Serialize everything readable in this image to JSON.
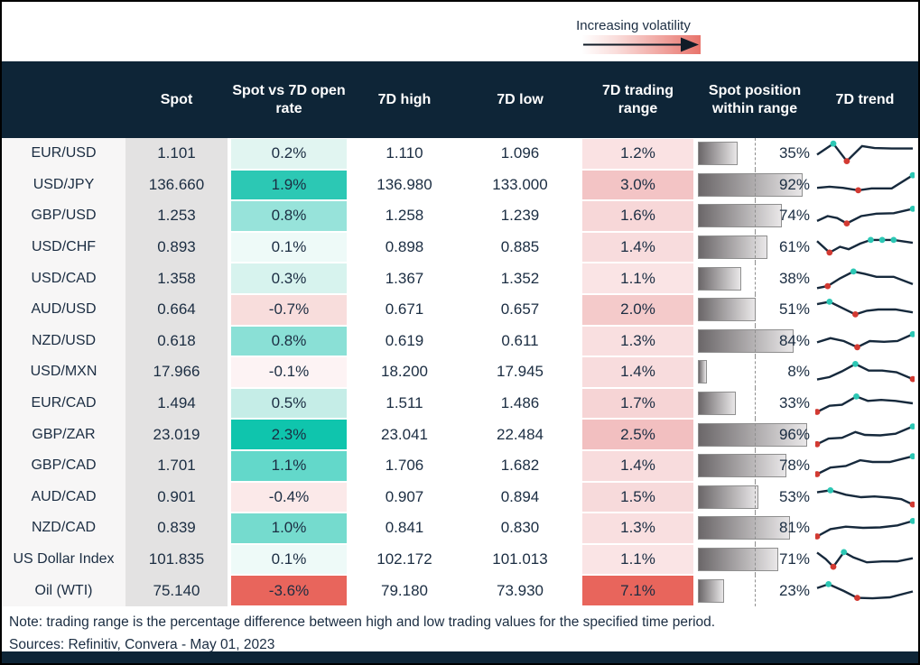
{
  "legend": {
    "label": "Increasing volatility"
  },
  "header": {
    "col_spot": "Spot",
    "col_change": "Spot vs 7D open rate",
    "col_high": "7D high",
    "col_low": "7D low",
    "col_range": "7D trading range",
    "col_position": "Spot position within range",
    "col_trend": "7D trend"
  },
  "footer": {
    "note": "Note: trading range is the percentage difference between high and low trading values for the specified time period.",
    "sources": "Sources: Refinitiv, Convera - May 01, 2023"
  },
  "colors": {
    "header_bg": "#0e2537",
    "text": "#1b2d42",
    "teal_strong": "#2cc8b4",
    "red_strong": "#e8655c",
    "bar_dark": "#6b6769",
    "bar_light": "#e9e7e8",
    "spark_line": "#16293c",
    "marker_up": "#2cc7b4",
    "marker_down": "#d23a32"
  },
  "chart_data": {
    "type": "table",
    "annotation": "Increasing volatility",
    "columns": [
      "",
      "Spot",
      "Spot vs 7D open rate",
      "7D high",
      "7D low",
      "7D trading range",
      "Spot position within range",
      "7D trend"
    ],
    "rows": [
      {
        "pair": "EUR/USD",
        "spot": "1.101",
        "change": "0.2%",
        "change_color": "#e1f5f1",
        "high": "1.110",
        "low": "1.096",
        "range": "1.2%",
        "range_color": "#fae2e3",
        "position_pct": 35,
        "spark": {
          "points": [
            [
              0,
              55
            ],
            [
              17,
              10
            ],
            [
              31,
              82
            ],
            [
              47,
              20
            ],
            [
              60,
              28
            ],
            [
              78,
              30
            ],
            [
              100,
              30
            ]
          ],
          "markers": [
            {
              "idx": 1,
              "dir": "up"
            },
            {
              "idx": 2,
              "dir": "down"
            }
          ]
        }
      },
      {
        "pair": "USD/JPY",
        "spot": "136.660",
        "change": "1.9%",
        "change_color": "#2cc8b4",
        "high": "136.980",
        "low": "133.000",
        "range": "3.0%",
        "range_color": "#f3c4c5",
        "position_pct": 92,
        "spark": {
          "points": [
            [
              0,
              62
            ],
            [
              13,
              57
            ],
            [
              27,
              62
            ],
            [
              43,
              72
            ],
            [
              57,
              64
            ],
            [
              78,
              64
            ],
            [
              100,
              10
            ]
          ],
          "markers": [
            {
              "idx": 3,
              "dir": "down"
            },
            {
              "idx": 6,
              "dir": "up"
            }
          ]
        }
      },
      {
        "pair": "GBP/USD",
        "spot": "1.253",
        "change": "0.8%",
        "change_color": "#97e3da",
        "high": "1.258",
        "low": "1.239",
        "range": "1.6%",
        "range_color": "#f7d7d8",
        "position_pct": 74,
        "spark": {
          "points": [
            [
              0,
              72
            ],
            [
              11,
              52
            ],
            [
              21,
              60
            ],
            [
              31,
              82
            ],
            [
              46,
              52
            ],
            [
              62,
              42
            ],
            [
              80,
              40
            ],
            [
              100,
              22
            ]
          ],
          "markers": [
            {
              "idx": 3,
              "dir": "down"
            },
            {
              "idx": 7,
              "dir": "up"
            }
          ]
        }
      },
      {
        "pair": "USD/CHF",
        "spot": "0.893",
        "change": "0.1%",
        "change_color": "#eefaf8",
        "high": "0.898",
        "low": "0.885",
        "range": "1.4%",
        "range_color": "#f8dcdd",
        "position_pct": 61,
        "spark": {
          "points": [
            [
              0,
              25
            ],
            [
              13,
              72
            ],
            [
              24,
              48
            ],
            [
              33,
              58
            ],
            [
              45,
              35
            ],
            [
              56,
              20
            ],
            [
              68,
              20
            ],
            [
              80,
              20
            ],
            [
              100,
              32
            ]
          ],
          "markers": [
            {
              "idx": 1,
              "dir": "down"
            },
            {
              "idx": 5,
              "dir": "up"
            },
            {
              "idx": 6,
              "dir": "up"
            },
            {
              "idx": 7,
              "dir": "up"
            }
          ]
        }
      },
      {
        "pair": "USD/CAD",
        "spot": "1.358",
        "change": "0.3%",
        "change_color": "#d7f3ee",
        "high": "1.367",
        "low": "1.352",
        "range": "1.1%",
        "range_color": "#fae4e5",
        "position_pct": 38,
        "spark": {
          "points": [
            [
              0,
              88
            ],
            [
              11,
              80
            ],
            [
              24,
              48
            ],
            [
              38,
              20
            ],
            [
              50,
              30
            ],
            [
              62,
              42
            ],
            [
              80,
              42
            ],
            [
              100,
              72
            ]
          ],
          "markers": [
            {
              "idx": 1,
              "dir": "down"
            },
            {
              "idx": 3,
              "dir": "up"
            }
          ]
        }
      },
      {
        "pair": "AUD/USD",
        "spot": "0.664",
        "change": "-0.7%",
        "change_color": "#f8dddc",
        "high": "0.671",
        "low": "0.657",
        "range": "2.0%",
        "range_color": "#f4caca",
        "position_pct": 51,
        "spark": {
          "points": [
            [
              0,
              28
            ],
            [
              13,
              18
            ],
            [
              27,
              45
            ],
            [
              40,
              70
            ],
            [
              52,
              55
            ],
            [
              64,
              50
            ],
            [
              82,
              50
            ],
            [
              100,
              62
            ]
          ],
          "markers": [
            {
              "idx": 1,
              "dir": "up"
            },
            {
              "idx": 3,
              "dir": "down"
            }
          ]
        }
      },
      {
        "pair": "NZD/USD",
        "spot": "0.618",
        "change": "0.8%",
        "change_color": "#8ae0d6",
        "high": "0.619",
        "low": "0.611",
        "range": "1.3%",
        "range_color": "#f9dfe0",
        "position_pct": 84,
        "spark": {
          "points": [
            [
              0,
              55
            ],
            [
              14,
              38
            ],
            [
              28,
              50
            ],
            [
              42,
              75
            ],
            [
              55,
              50
            ],
            [
              70,
              53
            ],
            [
              84,
              50
            ],
            [
              100,
              22
            ]
          ],
          "markers": [
            {
              "idx": 3,
              "dir": "down"
            },
            {
              "idx": 7,
              "dir": "up"
            }
          ]
        }
      },
      {
        "pair": "USD/MXN",
        "spot": "17.966",
        "change": "-0.1%",
        "change_color": "#fdf3f4",
        "high": "18.200",
        "low": "17.945",
        "range": "1.4%",
        "range_color": "#f8dcdd",
        "position_pct": 8,
        "spark": {
          "points": [
            [
              0,
              82
            ],
            [
              13,
              72
            ],
            [
              26,
              48
            ],
            [
              40,
              18
            ],
            [
              54,
              45
            ],
            [
              68,
              45
            ],
            [
              83,
              52
            ],
            [
              100,
              80
            ]
          ],
          "markers": [
            {
              "idx": 3,
              "dir": "up"
            },
            {
              "idx": 7,
              "dir": "down"
            }
          ]
        }
      },
      {
        "pair": "EUR/CAD",
        "spot": "1.494",
        "change": "0.5%",
        "change_color": "#c5ede7",
        "high": "1.511",
        "low": "1.486",
        "range": "1.7%",
        "range_color": "#f6d4d5",
        "position_pct": 33,
        "spark": {
          "points": [
            [
              0,
              85
            ],
            [
              13,
              60
            ],
            [
              26,
              56
            ],
            [
              41,
              22
            ],
            [
              53,
              40
            ],
            [
              67,
              36
            ],
            [
              82,
              40
            ],
            [
              100,
              50
            ]
          ],
          "markers": [
            {
              "idx": 0,
              "dir": "down"
            },
            {
              "idx": 3,
              "dir": "up"
            }
          ]
        }
      },
      {
        "pair": "GBP/ZAR",
        "spot": "23.019",
        "change": "2.3%",
        "change_color": "#0fc5ad",
        "high": "23.041",
        "low": "22.484",
        "range": "2.5%",
        "range_color": "#f2bfc0",
        "position_pct": 96,
        "spark": {
          "points": [
            [
              0,
              88
            ],
            [
              12,
              65
            ],
            [
              26,
              62
            ],
            [
              40,
              38
            ],
            [
              50,
              50
            ],
            [
              66,
              52
            ],
            [
              82,
              45
            ],
            [
              100,
              15
            ]
          ],
          "markers": [
            {
              "idx": 0,
              "dir": "down"
            },
            {
              "idx": 7,
              "dir": "up"
            }
          ]
        }
      },
      {
        "pair": "GBP/CAD",
        "spot": "1.701",
        "change": "1.1%",
        "change_color": "#63d8ca",
        "high": "1.706",
        "low": "1.682",
        "range": "1.4%",
        "range_color": "#f8dcdd",
        "position_pct": 78,
        "spark": {
          "points": [
            [
              0,
              85
            ],
            [
              14,
              58
            ],
            [
              30,
              52
            ],
            [
              45,
              28
            ],
            [
              58,
              35
            ],
            [
              76,
              35
            ],
            [
              100,
              12
            ]
          ],
          "markers": [
            {
              "idx": 0,
              "dir": "down"
            },
            {
              "idx": 6,
              "dir": "up"
            }
          ]
        }
      },
      {
        "pair": "AUD/CAD",
        "spot": "0.901",
        "change": "-0.4%",
        "change_color": "#fbe9e9",
        "high": "0.907",
        "low": "0.894",
        "range": "1.5%",
        "range_color": "#f7dadb",
        "position_pct": 53,
        "spark": {
          "points": [
            [
              0,
              30
            ],
            [
              14,
              22
            ],
            [
              30,
              40
            ],
            [
              46,
              50
            ],
            [
              60,
              47
            ],
            [
              76,
              52
            ],
            [
              88,
              58
            ],
            [
              100,
              80
            ]
          ],
          "markers": [
            {
              "idx": 1,
              "dir": "up"
            },
            {
              "idx": 7,
              "dir": "down"
            }
          ]
        }
      },
      {
        "pair": "NZD/CAD",
        "spot": "0.839",
        "change": "1.0%",
        "change_color": "#75dbce",
        "high": "0.841",
        "low": "0.830",
        "range": "1.3%",
        "range_color": "#f9dfe0",
        "position_pct": 81,
        "spark": {
          "points": [
            [
              0,
              85
            ],
            [
              14,
              55
            ],
            [
              30,
              45
            ],
            [
              48,
              50
            ],
            [
              66,
              48
            ],
            [
              84,
              40
            ],
            [
              100,
              22
            ]
          ],
          "markers": [
            {
              "idx": 0,
              "dir": "down"
            },
            {
              "idx": 6,
              "dir": "up"
            }
          ]
        }
      },
      {
        "pair": "US Dollar Index",
        "spot": "101.835",
        "change": "0.1%",
        "change_color": "#eefaf8",
        "high": "102.172",
        "low": "101.013",
        "range": "1.1%",
        "range_color": "#fae4e5",
        "position_pct": 71,
        "spark": {
          "points": [
            [
              0,
              22
            ],
            [
              9,
              48
            ],
            [
              17,
              80
            ],
            [
              28,
              20
            ],
            [
              38,
              42
            ],
            [
              52,
              62
            ],
            [
              68,
              58
            ],
            [
              84,
              58
            ],
            [
              100,
              45
            ]
          ],
          "markers": [
            {
              "idx": 2,
              "dir": "down"
            },
            {
              "idx": 3,
              "dir": "up"
            }
          ]
        }
      },
      {
        "pair": "Oil (WTI)",
        "spot": "75.140",
        "change": "-3.6%",
        "change_color": "#e8655c",
        "high": "79.180",
        "low": "73.930",
        "range": "7.1%",
        "range_color": "#e8655c",
        "position_pct": 23,
        "spark": {
          "points": [
            [
              0,
              38
            ],
            [
              12,
              22
            ],
            [
              28,
              50
            ],
            [
              42,
              78
            ],
            [
              58,
              80
            ],
            [
              76,
              76
            ],
            [
              100,
              52
            ]
          ],
          "markers": [
            {
              "idx": 1,
              "dir": "up"
            },
            {
              "idx": 3,
              "dir": "down"
            }
          ]
        }
      }
    ]
  }
}
